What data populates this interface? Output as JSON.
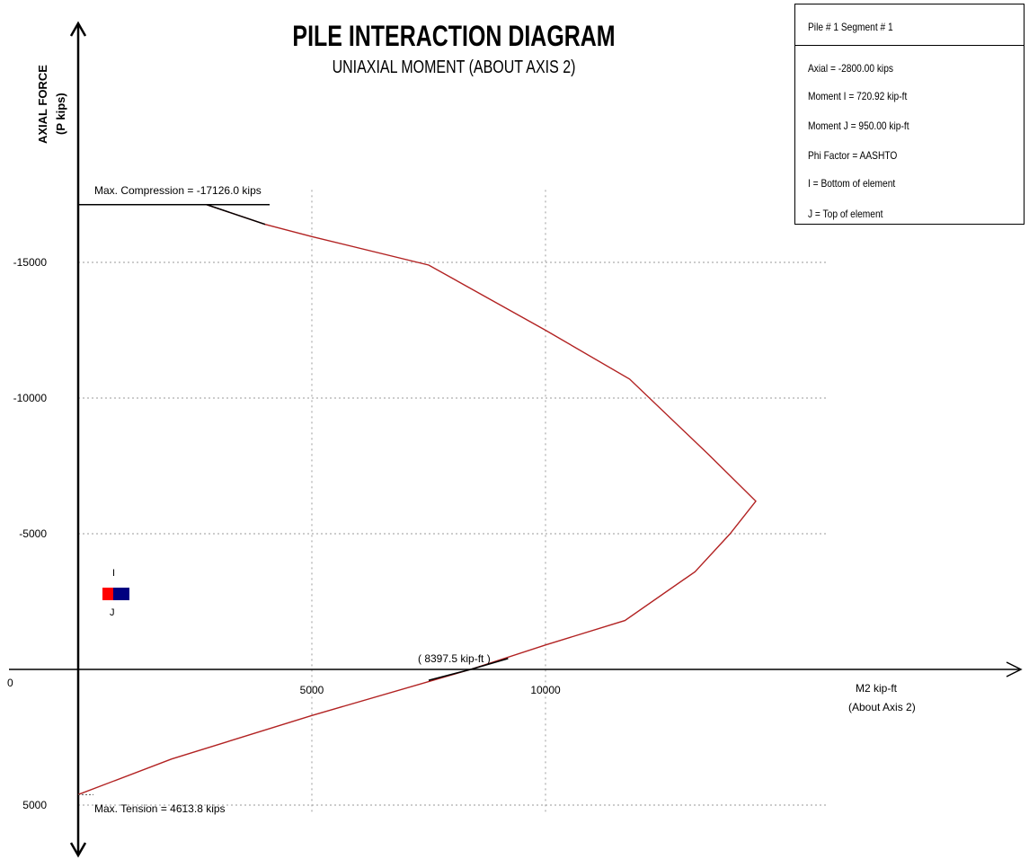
{
  "chart_data": {
    "type": "line",
    "title": "PILE INTERACTION DIAGRAM",
    "subtitle": "UNIAXIAL MOMENT (ABOUT AXIS 2)",
    "ylabel_line1": "AXIAL FORCE",
    "ylabel_line2": "(P  kips)",
    "xlabel_line1": "M2  kip-ft",
    "xlabel_line2": "(About Axis 2)",
    "origin_label": "0",
    "x_ticks": [
      {
        "value": 5000,
        "label": "5000"
      },
      {
        "value": 10000,
        "label": "10000"
      }
    ],
    "y_ticks": [
      {
        "value": -15000,
        "label": "-15000"
      },
      {
        "value": -10000,
        "label": "-10000"
      },
      {
        "value": -5000,
        "label": "-5000"
      },
      {
        "value": 5000,
        "label": "5000"
      }
    ],
    "xlim": [
      0,
      16000
    ],
    "ylim": [
      -18000,
      5800
    ],
    "grid": true,
    "series": [
      {
        "name": "",
        "color": "#b22222",
        "points": [
          [
            0,
            -17126
          ],
          [
            2750,
            -17126
          ],
          [
            4000,
            -16400
          ],
          [
            5000,
            -15950
          ],
          [
            7500,
            -14900
          ],
          [
            10000,
            -12500
          ],
          [
            11800,
            -10700
          ],
          [
            13500,
            -7900
          ],
          [
            14500,
            -6200
          ],
          [
            13950,
            -5000
          ],
          [
            13200,
            -3600
          ],
          [
            11700,
            -1800
          ],
          [
            10000,
            -900
          ],
          [
            8397.5,
            0
          ],
          [
            5000,
            1700
          ],
          [
            2000,
            3300
          ],
          [
            0,
            4613.8
          ]
        ]
      }
    ],
    "compression_segment": [
      [
        0,
        -17126
      ],
      [
        2750,
        -17126
      ],
      [
        4000,
        -16400
      ]
    ],
    "tension_crossing_segment": [
      [
        7500,
        400
      ],
      [
        8397.5,
        0
      ],
      [
        9200,
        -400
      ]
    ],
    "annotations": {
      "max_compression": "Max. Compression = -17126.0 kips",
      "max_tension": "Max. Tension = 4613.8 kips",
      "crossing": "( 8397.5  kip-ft )"
    },
    "legend": {
      "i_label": "I",
      "j_label": "J",
      "i_color": "#ff0000",
      "j_color": "#000080"
    }
  },
  "info_box": {
    "header": "Pile # 1   Segment # 1",
    "lines": [
      "Axial = -2800.00 kips",
      "Moment I = 720.92 kip-ft",
      "Moment J = 950.00 kip-ft",
      "Phi Factor = AASHTO",
      "I = Bottom of element",
      "J = Top of element"
    ]
  }
}
